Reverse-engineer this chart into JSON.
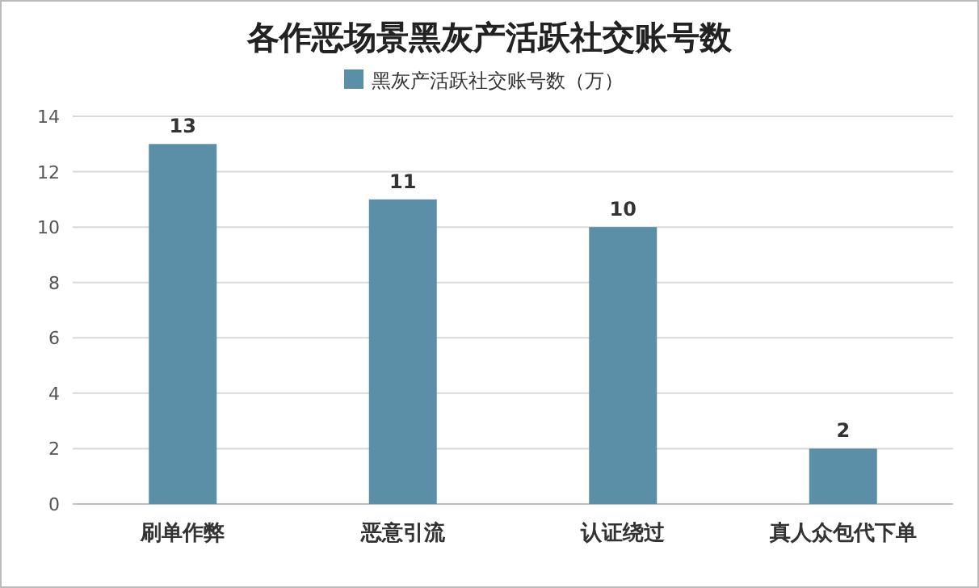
{
  "chart_data": {
    "type": "bar",
    "title": "各作恶场景黑灰产活跃社交账号数",
    "categories": [
      "刷单作弊",
      "恶意引流",
      "认证绕过",
      "真人众包代下单"
    ],
    "series": [
      {
        "name": "黑灰产活跃社交账号数（万）",
        "color": "#5b8fa8",
        "values": [
          13,
          11,
          10,
          2
        ]
      }
    ],
    "ylim": [
      0,
      14
    ],
    "yticks": [
      0,
      2,
      4,
      6,
      8,
      10,
      12,
      14
    ],
    "grid": "y",
    "legend": "top",
    "data_labels": true
  }
}
